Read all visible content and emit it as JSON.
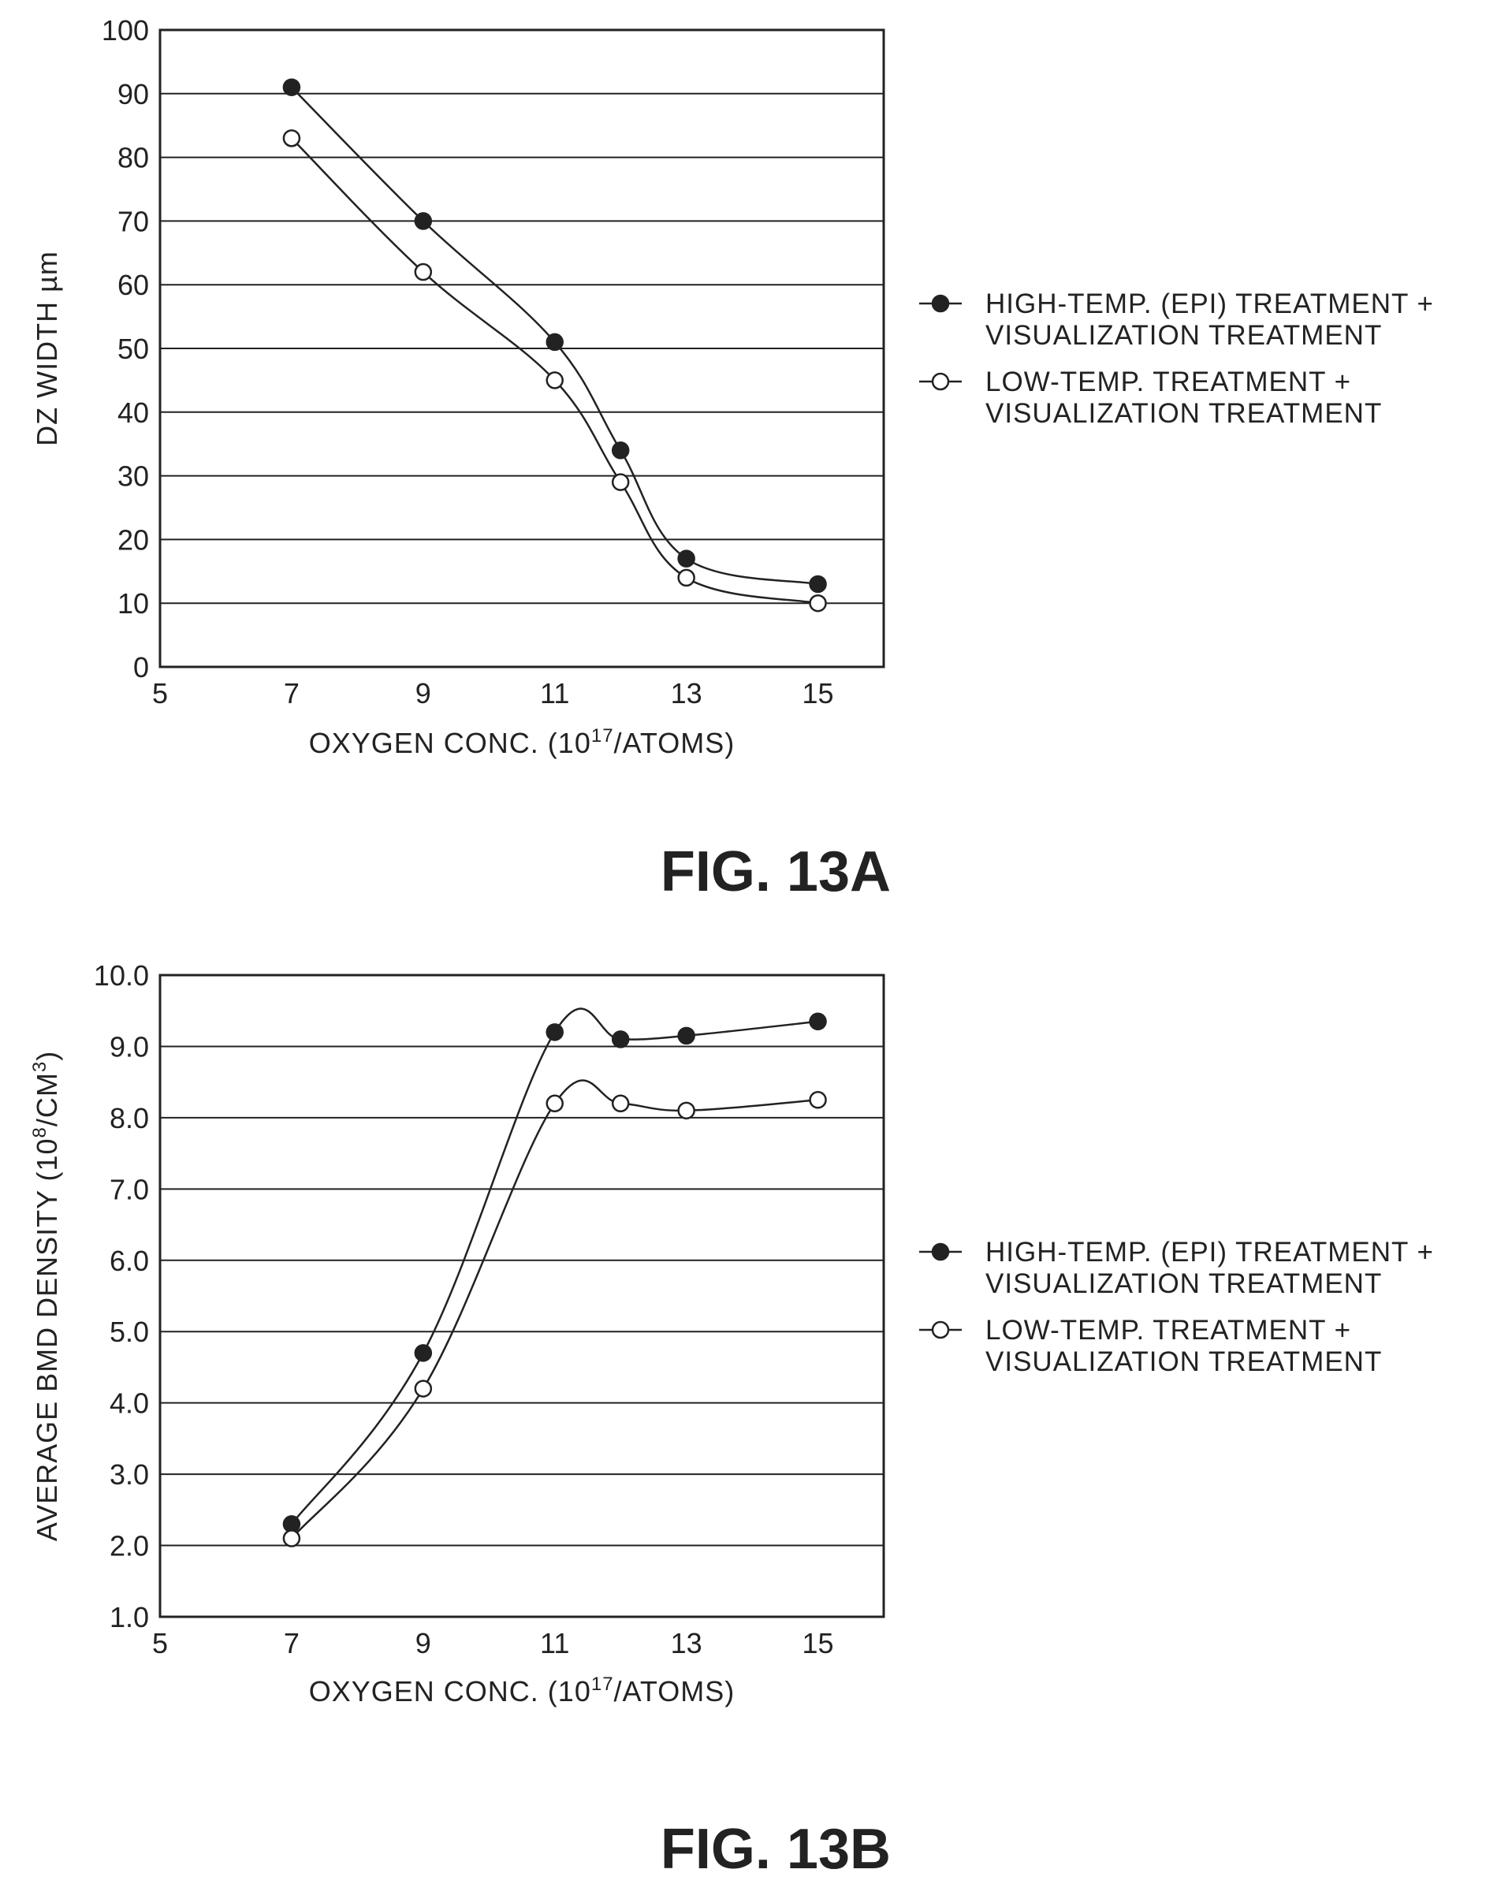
{
  "chart_data": [
    {
      "type": "line",
      "caption": "FIG. 13A",
      "xlabel": "OXYGEN CONC. (10",
      "xlabel_sup": "17",
      "xlabel_tail": "/ATOMS)",
      "ylabel": "DZ WIDTH µm",
      "xlim": [
        5,
        16
      ],
      "ylim": [
        0,
        100
      ],
      "x_ticks": [
        "5",
        "7",
        "9",
        "11",
        "13",
        "15"
      ],
      "x_tick_values": [
        5,
        7,
        9,
        11,
        13,
        15
      ],
      "y_ticks": [
        "0",
        "10",
        "20",
        "30",
        "40",
        "50",
        "60",
        "70",
        "80",
        "90",
        "100"
      ],
      "y_tick_values": [
        0,
        10,
        20,
        30,
        40,
        50,
        60,
        70,
        80,
        90,
        100
      ],
      "grid": true,
      "legend_position": "right",
      "series": [
        {
          "name_lines": [
            "HIGH-TEMP. (EPI) TREATMENT +",
            "VISUALIZATION TREATMENT"
          ],
          "marker": "filled",
          "x": [
            7,
            9,
            11,
            12,
            13,
            15
          ],
          "y": [
            91,
            70,
            51,
            34,
            17,
            13
          ]
        },
        {
          "name_lines": [
            "LOW-TEMP. TREATMENT +",
            "VISUALIZATION TREATMENT"
          ],
          "marker": "open",
          "x": [
            7,
            9,
            11,
            12,
            13,
            15
          ],
          "y": [
            83,
            62,
            45,
            29,
            14,
            10
          ]
        }
      ]
    },
    {
      "type": "line",
      "caption": "FIG. 13B",
      "xlabel": "OXYGEN CONC. (10",
      "xlabel_sup": "17",
      "xlabel_tail": "/ATOMS)",
      "ylabel": "AVERAGE BMD DENSITY (10",
      "ylabel_sup": "8",
      "ylabel_tail": "/CM",
      "ylabel_sup2": "3",
      "ylabel_end": ")",
      "xlim": [
        5,
        16
      ],
      "ylim": [
        1.0,
        10.0
      ],
      "x_ticks": [
        "5",
        "7",
        "9",
        "11",
        "13",
        "15"
      ],
      "x_tick_values": [
        5,
        7,
        9,
        11,
        13,
        15
      ],
      "y_ticks": [
        "1.0",
        "2.0",
        "3.0",
        "4.0",
        "5.0",
        "6.0",
        "7.0",
        "8.0",
        "9.0",
        "10.0"
      ],
      "y_tick_values": [
        1,
        2,
        3,
        4,
        5,
        6,
        7,
        8,
        9,
        10
      ],
      "grid": true,
      "legend_position": "right",
      "series": [
        {
          "name_lines": [
            "HIGH-TEMP. (EPI) TREATMENT +",
            "VISUALIZATION TREATMENT"
          ],
          "marker": "filled",
          "x": [
            7,
            9,
            11,
            12,
            13,
            15
          ],
          "y": [
            2.3,
            4.7,
            9.2,
            9.1,
            9.15,
            9.35
          ]
        },
        {
          "name_lines": [
            "LOW-TEMP. TREATMENT +",
            "VISUALIZATION TREATMENT"
          ],
          "marker": "open",
          "x": [
            7,
            9,
            11,
            12,
            13,
            15
          ],
          "y": [
            2.1,
            4.2,
            8.2,
            8.2,
            8.1,
            8.25
          ]
        }
      ]
    }
  ]
}
